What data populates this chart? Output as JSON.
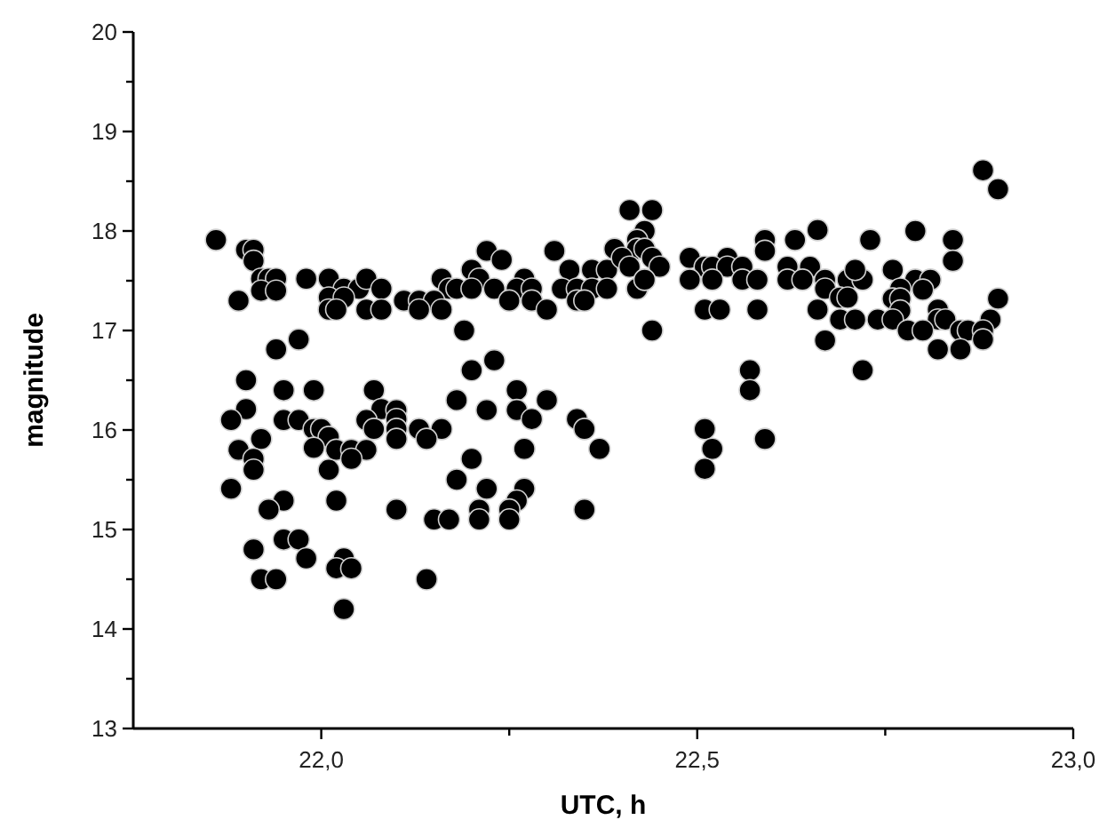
{
  "chart_data": {
    "type": "scatter",
    "xlabel": "UTC, h",
    "ylabel": "magnitude",
    "marker": "circle",
    "xlim": [
      21.75,
      23.0
    ],
    "xticks": [
      {
        "value": 22,
        "label": "22,0"
      },
      {
        "value": 22.25,
        "label": null
      },
      {
        "value": 22.5,
        "label": "22,5"
      },
      {
        "value": 22.75,
        "label": null
      },
      {
        "value": 23,
        "label": "23,0"
      }
    ],
    "ylim": [
      13,
      20
    ],
    "yticks": [
      13,
      {
        "value": 13.5,
        "label": null
      },
      14,
      {
        "value": 14.5,
        "label": null
      },
      15,
      {
        "value": 15.5,
        "label": null
      },
      16,
      {
        "value": 16.5,
        "label": null
      },
      17,
      {
        "value": 17.5,
        "label": null
      },
      18,
      {
        "value": 18.5,
        "label": null
      },
      19,
      {
        "value": 19.5,
        "label": null
      },
      20
    ],
    "series": [
      {
        "color": "#000000",
        "x": [
          21.86,
          21.9,
          21.91,
          21.91,
          21.92,
          21.93,
          21.94,
          21.92,
          21.94,
          21.89,
          21.98,
          22.01,
          22.03,
          22.05,
          22.06,
          22.08,
          22.01,
          22.03,
          22.01,
          22.02,
          22.06,
          22.08,
          21.97,
          21.94,
          21.9,
          21.95,
          21.99,
          22.07,
          21.9,
          22.08,
          21.88,
          21.95,
          21.97,
          22.06,
          21.99,
          22.0,
          22.07,
          21.92,
          22.01,
          21.89,
          21.99,
          22.02,
          22.04,
          22.06,
          21.91,
          21.91,
          22.04,
          22.01,
          21.88,
          21.95,
          22.02,
          21.93,
          21.95,
          21.97,
          21.91,
          21.98,
          22.03,
          22.02,
          22.04,
          21.92,
          21.94,
          22.03,
          22.41,
          22.39,
          22.22,
          22.24,
          22.31,
          22.2,
          22.33,
          22.36,
          22.38,
          22.16,
          22.21,
          22.27,
          22.17,
          22.18,
          22.2,
          22.23,
          22.26,
          22.28,
          22.32,
          22.34,
          22.36,
          22.38,
          22.42,
          22.11,
          22.13,
          22.15,
          22.25,
          22.28,
          22.34,
          22.35,
          22.13,
          22.16,
          22.3,
          22.19,
          22.23,
          22.2,
          22.26,
          22.3,
          22.18,
          22.1,
          22.22,
          22.26,
          22.28,
          22.34,
          22.1,
          22.1,
          22.13,
          22.16,
          22.35,
          22.1,
          22.14,
          22.27,
          22.37,
          22.2,
          22.18,
          22.22,
          22.27,
          22.26,
          22.25,
          22.1,
          22.21,
          22.35,
          22.15,
          22.17,
          22.21,
          22.25,
          22.14,
          22.44,
          22.43,
          22.42,
          22.42,
          22.43,
          22.4,
          22.44,
          22.49,
          22.54,
          22.59,
          22.59,
          22.63,
          22.66,
          22.73,
          22.41,
          22.45,
          22.51,
          22.52,
          22.54,
          22.56,
          22.62,
          22.65,
          22.49,
          22.52,
          22.56,
          22.58,
          22.62,
          22.64,
          22.67,
          22.7,
          22.72,
          22.42,
          22.67,
          22.69,
          22.7,
          22.43,
          22.51,
          22.53,
          22.58,
          22.66,
          22.69,
          22.71,
          22.67,
          22.44,
          22.57,
          22.57,
          22.72,
          22.51,
          22.52,
          22.51,
          22.59,
          22.88,
          22.9,
          22.79,
          22.84,
          22.84,
          22.71,
          22.76,
          22.79,
          22.81,
          22.77,
          22.8,
          22.76,
          22.77,
          22.77,
          22.82,
          22.9,
          22.89,
          22.74,
          22.76,
          22.82,
          22.83,
          22.78,
          22.8,
          22.85,
          22.86,
          22.88,
          22.88,
          22.82,
          22.85
        ],
        "values": [
          17.91,
          17.81,
          17.81,
          17.7,
          17.52,
          17.52,
          17.52,
          17.4,
          17.4,
          17.3,
          17.52,
          17.52,
          17.42,
          17.42,
          17.52,
          17.42,
          17.33,
          17.33,
          17.21,
          17.21,
          17.21,
          17.21,
          16.91,
          16.81,
          16.5,
          16.4,
          16.4,
          16.4,
          16.21,
          16.21,
          16.1,
          16.1,
          16.1,
          16.1,
          16.01,
          16.01,
          16.01,
          15.91,
          15.93,
          15.8,
          15.82,
          15.8,
          15.8,
          15.8,
          15.71,
          15.6,
          15.71,
          15.6,
          15.41,
          15.29,
          15.29,
          15.2,
          14.9,
          14.9,
          14.8,
          14.71,
          14.71,
          14.61,
          14.61,
          14.5,
          14.5,
          14.2,
          18.21,
          17.82,
          17.8,
          17.71,
          17.8,
          17.61,
          17.61,
          17.61,
          17.61,
          17.52,
          17.52,
          17.52,
          17.42,
          17.42,
          17.42,
          17.42,
          17.42,
          17.42,
          17.42,
          17.42,
          17.42,
          17.42,
          17.42,
          17.3,
          17.3,
          17.3,
          17.3,
          17.3,
          17.3,
          17.3,
          17.21,
          17.21,
          17.21,
          17.0,
          16.7,
          16.6,
          16.4,
          16.3,
          16.3,
          16.2,
          16.2,
          16.2,
          16.11,
          16.11,
          16.11,
          16.01,
          16.01,
          16.01,
          16.01,
          15.91,
          15.91,
          15.81,
          15.81,
          15.71,
          15.5,
          15.41,
          15.41,
          15.29,
          15.2,
          15.2,
          15.2,
          15.2,
          15.1,
          15.1,
          15.1,
          15.1,
          14.5,
          18.21,
          18.0,
          17.91,
          17.82,
          17.82,
          17.73,
          17.73,
          17.73,
          17.73,
          17.91,
          17.8,
          17.91,
          18.01,
          17.91,
          17.64,
          17.64,
          17.64,
          17.64,
          17.64,
          17.64,
          17.64,
          17.64,
          17.51,
          17.51,
          17.51,
          17.51,
          17.51,
          17.51,
          17.51,
          17.51,
          17.51,
          17.42,
          17.42,
          17.33,
          17.33,
          17.51,
          17.21,
          17.21,
          17.21,
          17.21,
          17.11,
          17.11,
          16.9,
          17.0,
          16.6,
          16.4,
          16.6,
          16.01,
          15.81,
          15.61,
          15.91,
          18.61,
          18.42,
          18.0,
          17.91,
          17.7,
          17.61,
          17.61,
          17.51,
          17.51,
          17.42,
          17.41,
          17.32,
          17.32,
          17.2,
          17.21,
          17.32,
          17.11,
          17.11,
          17.11,
          17.11,
          17.11,
          17.0,
          17.0,
          17.0,
          17.0,
          17.0,
          16.91,
          16.81,
          16.81
        ]
      }
    ]
  }
}
